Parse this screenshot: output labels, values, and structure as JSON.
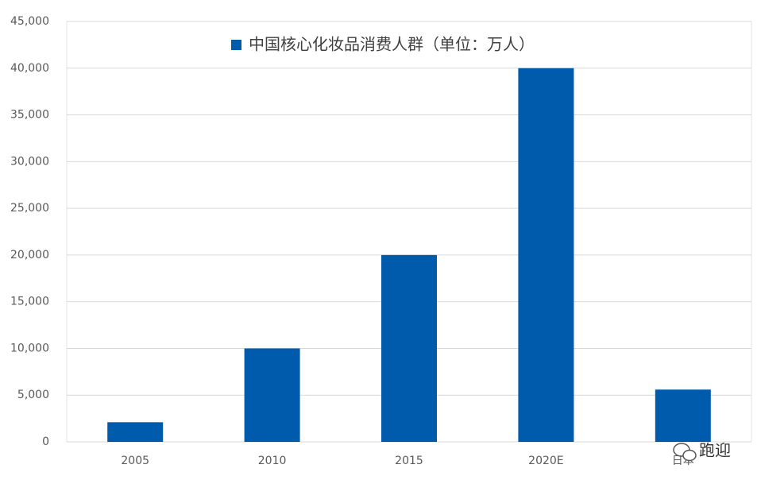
{
  "chart_data": {
    "type": "bar",
    "categories": [
      "2005",
      "2010",
      "2015",
      "2020E",
      "日本"
    ],
    "series": [
      {
        "name": "中国核心化妆品消费人群（单位：万人）",
        "color": "#005bac",
        "values": [
          2100,
          10000,
          20000,
          40000,
          5600
        ]
      }
    ],
    "ylim": [
      0,
      45000
    ],
    "yticks": [
      0,
      {
        "value": 5000,
        "label": "5,000"
      },
      {
        "value": 10000,
        "label": "10,000"
      },
      {
        "value": 15000,
        "label": "15,000"
      },
      {
        "value": 20000,
        "label": "20,000"
      },
      {
        "value": 25000,
        "label": "25,000"
      },
      {
        "value": 30000,
        "label": "30,000"
      },
      {
        "value": 35000,
        "label": "35,000"
      },
      {
        "value": 40000,
        "label": "40,000"
      },
      {
        "value": 45000,
        "label": "45,000"
      }
    ],
    "grid": true,
    "legend": "top",
    "watermark": "跑迎"
  }
}
